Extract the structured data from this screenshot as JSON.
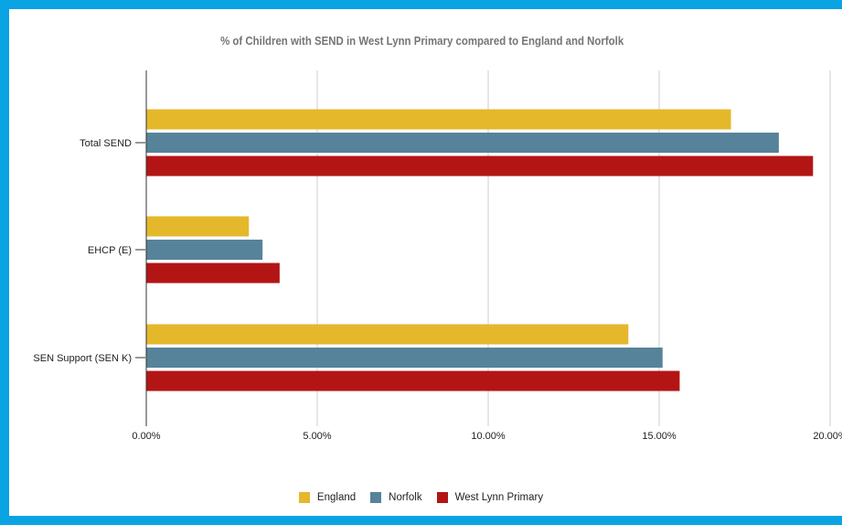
{
  "chart_data": {
    "type": "bar",
    "orientation": "horizontal",
    "title": "% of Children with SEND in West Lynn Primary compared to England and Norfolk",
    "categories": [
      "Total SEND",
      "EHCP (E)",
      "SEN Support (SEN K)"
    ],
    "series": [
      {
        "name": "England",
        "color": "#e5b72b",
        "values": [
          17.1,
          3.0,
          14.1
        ]
      },
      {
        "name": "Norfolk",
        "color": "#56839a",
        "values": [
          18.5,
          3.4,
          15.1
        ]
      },
      {
        "name": "West Lynn Primary",
        "color": "#b31515",
        "values": [
          19.5,
          3.9,
          15.6
        ]
      }
    ],
    "xlim": [
      0,
      20
    ],
    "x_ticks": [
      "0.00%",
      "5.00%",
      "10.00%",
      "15.00%",
      "20.00%"
    ],
    "grid": true,
    "legend_position": "bottom",
    "background_border_color": "#0aa3e4"
  }
}
